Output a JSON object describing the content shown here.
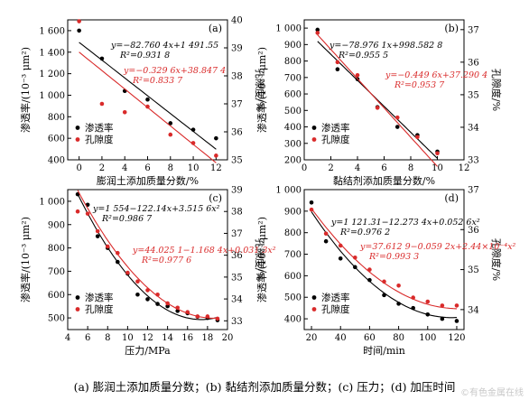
{
  "chart_data": [
    {
      "type": "scatter",
      "panel": "(a)",
      "xlabel": "膨润土添加质量分数/%",
      "ylabel_left": "渗透率/(10⁻³ μm²)",
      "ylabel_right": "孔隙度/%",
      "xlim": [
        -1,
        13
      ],
      "ylim_left": [
        400,
        1700
      ],
      "ylim_right": [
        35,
        40
      ],
      "xticks": [
        0,
        2,
        4,
        6,
        8,
        10,
        12
      ],
      "yticks_left": [
        400,
        600,
        800,
        1000,
        1200,
        1400,
        1600
      ],
      "yticks_right": [
        35,
        36,
        37,
        38,
        39,
        40
      ],
      "ytick_labels_left": [
        "400",
        "600",
        "800",
        "1 000",
        "1 200",
        "1 400",
        "1 600"
      ],
      "series": [
        {
          "name": "渗透率",
          "axis": "left",
          "color": "#000000",
          "x": [
            0,
            2,
            4,
            6,
            8,
            10,
            12
          ],
          "y": [
            1600,
            1340,
            1040,
            960,
            740,
            680,
            600
          ],
          "fit": {
            "type": "linear",
            "a": 1491.55,
            "b": -82.76
          },
          "equation": "y=−82.760 4x+1 491.55",
          "r2": "R²=0.931 8"
        },
        {
          "name": "孔隙度",
          "axis": "right",
          "color": "#d92a2a",
          "x": [
            0,
            2,
            4,
            6,
            8,
            10,
            12
          ],
          "y": [
            39.95,
            37.0,
            36.7,
            36.9,
            35.9,
            35.6,
            35.15
          ],
          "fit": {
            "type": "linear",
            "a": 38.8474,
            "b": -0.3296
          },
          "equation": "y=−0.329 6x+38.847 4",
          "r2": "R²=0.833 7"
        }
      ]
    },
    {
      "type": "scatter",
      "panel": "(b)",
      "xlabel": "黏结剂添加质量分数/%",
      "ylabel_left": "渗透率/(10⁻³ μm²)",
      "ylabel_right": "孔隙度/%",
      "xlim": [
        0,
        12
      ],
      "ylim_left": [
        200,
        1050
      ],
      "ylim_right": [
        33,
        37.3
      ],
      "xticks": [
        0,
        2,
        4,
        6,
        8,
        10,
        12
      ],
      "yticks_left": [
        200,
        300,
        400,
        500,
        600,
        700,
        800,
        900,
        1000
      ],
      "yticks_right": [
        33,
        34,
        35,
        36,
        37
      ],
      "ytick_labels_left": [
        "200",
        "300",
        "400",
        "500",
        "600",
        "700",
        "800",
        "900",
        "1 000"
      ],
      "series": [
        {
          "name": "渗透率",
          "axis": "left",
          "color": "#000000",
          "x": [
            1,
            2.5,
            4,
            5.5,
            7,
            8.5,
            10
          ],
          "y": [
            990,
            750,
            690,
            520,
            400,
            350,
            250
          ],
          "fit": {
            "type": "linear",
            "a": 998.5828,
            "b": -78.9761
          },
          "equation": "y=−78.976 1x+998.582 8",
          "r2": "R²=0.955 5"
        },
        {
          "name": "孔隙度",
          "axis": "right",
          "color": "#d92a2a",
          "x": [
            1,
            2.5,
            4,
            5.5,
            7,
            8.5,
            10
          ],
          "y": [
            36.9,
            36.0,
            35.6,
            34.6,
            34.3,
            33.7,
            33.2
          ],
          "fit": {
            "type": "linear",
            "a": 37.2904,
            "b": -0.4496
          },
          "equation": "y=−0.449 6x+37.290 4",
          "r2": "R²=0.953 7"
        }
      ]
    },
    {
      "type": "scatter",
      "panel": "(c)",
      "xlabel": "压力/MPa",
      "ylabel_left": "渗透率/(10⁻³ μm²)",
      "ylabel_right": "孔隙度/%",
      "xlim": [
        4,
        20
      ],
      "ylim_left": [
        450,
        1050
      ],
      "ylim_right": [
        32.6,
        39
      ],
      "xticks": [
        4,
        6,
        8,
        10,
        12,
        14,
        16,
        18,
        20
      ],
      "yticks_left": [
        500,
        600,
        700,
        800,
        900,
        1000
      ],
      "yticks_right": [
        33,
        34,
        35,
        36,
        37,
        38,
        39
      ],
      "ytick_labels_left": [
        "500",
        "600",
        "700",
        "800",
        "900",
        "1 000"
      ],
      "series": [
        {
          "name": "渗透率",
          "axis": "left",
          "color": "#000000",
          "x": [
            5,
            6,
            7,
            8,
            9,
            10,
            11,
            12,
            13,
            14,
            15,
            16,
            17,
            18,
            19
          ],
          "y": [
            1030,
            985,
            850,
            800,
            740,
            690,
            600,
            580,
            560,
            550,
            530,
            520,
            505,
            500,
            490
          ],
          "fit": {
            "type": "quadratic",
            "a": 1554,
            "b": -122.14,
            "c": 3.515
          },
          "equation": "y=1 554−122.14x+3.515 6x²",
          "r2": "R²=0.986 7"
        },
        {
          "name": "孔隙度",
          "axis": "right",
          "color": "#d92a2a",
          "x": [
            5,
            6,
            7,
            8,
            9,
            10,
            11,
            12,
            13,
            14,
            15,
            16,
            17,
            18,
            19
          ],
          "y": [
            38.0,
            37.9,
            37.1,
            36.4,
            36.1,
            35.2,
            34.8,
            34.4,
            34.2,
            33.8,
            33.6,
            33.4,
            33.2,
            33.2,
            33.1
          ],
          "fit": {
            "type": "quadratic",
            "a": 44.0251,
            "b": -1.1684,
            "c": 0.0313
          },
          "equation": "y=44.025 1−1.168 4x+0.031 3x²",
          "r2": "R²=0.977 6"
        }
      ]
    },
    {
      "type": "scatter",
      "panel": "(d)",
      "xlabel": "时间/min",
      "ylabel_left": "渗透率/(10⁻³ μm²)",
      "ylabel_right": "孔隙度/%",
      "xlim": [
        15,
        125
      ],
      "ylim_left": [
        350,
        1000
      ],
      "ylim_right": [
        33.5,
        37
      ],
      "xticks": [
        20,
        40,
        60,
        80,
        100,
        120
      ],
      "yticks_left": [
        400,
        500,
        600,
        700,
        800,
        900,
        1000
      ],
      "yticks_right": [
        34,
        35,
        36,
        37
      ],
      "ytick_labels_left": [
        "400",
        "500",
        "600",
        "700",
        "800",
        "900",
        "1 000"
      ],
      "series": [
        {
          "name": "渗透率",
          "axis": "left",
          "color": "#000000",
          "x": [
            20,
            30,
            40,
            50,
            60,
            70,
            80,
            90,
            100,
            110,
            120
          ],
          "y": [
            940,
            760,
            680,
            640,
            580,
            510,
            470,
            450,
            420,
            400,
            390
          ],
          "fit": {
            "type": "quadratic",
            "a": 1121.31,
            "b": -12.273,
            "c": 0.0526
          },
          "equation": "y=1 121.31−12.273 4x+0.052 6x²",
          "r2": "R²=0.976 2"
        },
        {
          "name": "孔隙度",
          "axis": "right",
          "color": "#d92a2a",
          "x": [
            20,
            30,
            40,
            50,
            60,
            70,
            80,
            90,
            100,
            110,
            120
          ],
          "y": [
            36.5,
            35.9,
            35.6,
            35.3,
            35.0,
            34.7,
            34.6,
            34.3,
            34.2,
            34.1,
            34.1
          ],
          "fit": {
            "type": "quadratic",
            "a": 37.6129,
            "b": -0.0592,
            "c": 0.000244
          },
          "equation": "y=37.612 9−0.059 2x+2.44×10⁻⁴x²",
          "r2": "R²=0.993 3"
        }
      ]
    }
  ],
  "caption": "(a) 膨润土添加质量分数；(b) 黏结剂添加质量分数；(c) 压力；(d) 加压时间",
  "watermark": "©有色金属在线",
  "colors": {
    "permeability": "#000000",
    "porosity": "#d92a2a"
  }
}
